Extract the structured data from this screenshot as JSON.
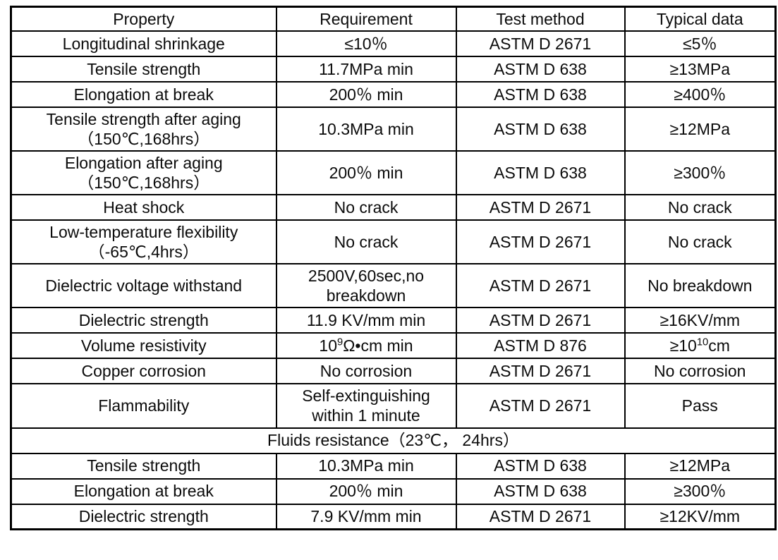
{
  "table": {
    "headers": [
      "Property",
      "Requirement",
      "Test method",
      "Typical data"
    ],
    "rows": [
      {
        "type": "data",
        "property": "Longitudinal shrinkage",
        "requirement": "≤10％",
        "test_method": "ASTM D 2671",
        "typical": "≤5％"
      },
      {
        "type": "data",
        "property": "Tensile strength",
        "requirement": "11.7MPa min",
        "test_method": "ASTM D 638",
        "typical": "≥13MPa"
      },
      {
        "type": "data",
        "property": "Elongation at break",
        "requirement": "200％ min",
        "test_method": "ASTM D 638",
        "typical": "≥400％"
      },
      {
        "type": "data",
        "property": "Tensile strength after aging",
        "property2": "（150℃,168hrs）",
        "requirement": "10.3MPa min",
        "test_method": "ASTM D 638",
        "typical": "≥12MPa"
      },
      {
        "type": "data",
        "property": "Elongation after aging",
        "property2": "（150℃,168hrs）",
        "requirement": "200％ min",
        "test_method": "ASTM D 638",
        "typical": "≥300％"
      },
      {
        "type": "data",
        "property": "Heat shock",
        "requirement": "No crack",
        "test_method": "ASTM D 2671",
        "typical": "No crack"
      },
      {
        "type": "data",
        "property": "Low-temperature flexibility",
        "property2": "（-65℃,4hrs）",
        "requirement": "No crack",
        "test_method": "ASTM D 2671",
        "typical": "No crack"
      },
      {
        "type": "data",
        "property": "Dielectric voltage withstand",
        "requirement": "2500V,60sec,no breakdown",
        "test_method": "ASTM D 2671",
        "typical": "No breakdown"
      },
      {
        "type": "data",
        "property": "Dielectric strength",
        "requirement": "11.9 KV/mm min",
        "test_method": "ASTM D 2671",
        "typical": "≥16KV/mm"
      },
      {
        "type": "data",
        "property": "Volume resistivity",
        "requirement": "10^9^Ω•cm min",
        "test_method": "ASTM D 876",
        "typical": "≥10^10^cm"
      },
      {
        "type": "data",
        "property": "Copper corrosion",
        "requirement": "No corrosion",
        "test_method": "ASTM D 2671",
        "typical": "No corrosion"
      },
      {
        "type": "data",
        "property": "Flammability",
        "requirement": "Self-extinguishing within 1 minute",
        "test_method": "ASTM D 2671",
        "typical": "Pass"
      },
      {
        "type": "section",
        "label": "Fluids resistance（23℃， 24hrs）"
      },
      {
        "type": "data",
        "property": "Tensile strength",
        "requirement": "10.3MPa min",
        "test_method": "ASTM D 638",
        "typical": "≥12MPa"
      },
      {
        "type": "data",
        "property": "Elongation at break",
        "requirement": "200％ min",
        "test_method": "ASTM D 638",
        "typical": "≥300％"
      },
      {
        "type": "data",
        "property": "Dielectric strength",
        "requirement": "7.9 KV/mm min",
        "test_method": "ASTM D 2671",
        "typical": "≥12KV/mm"
      }
    ],
    "colors": {
      "border": "#000000",
      "text": "#0b0b0b",
      "background": "#ffffff"
    }
  }
}
